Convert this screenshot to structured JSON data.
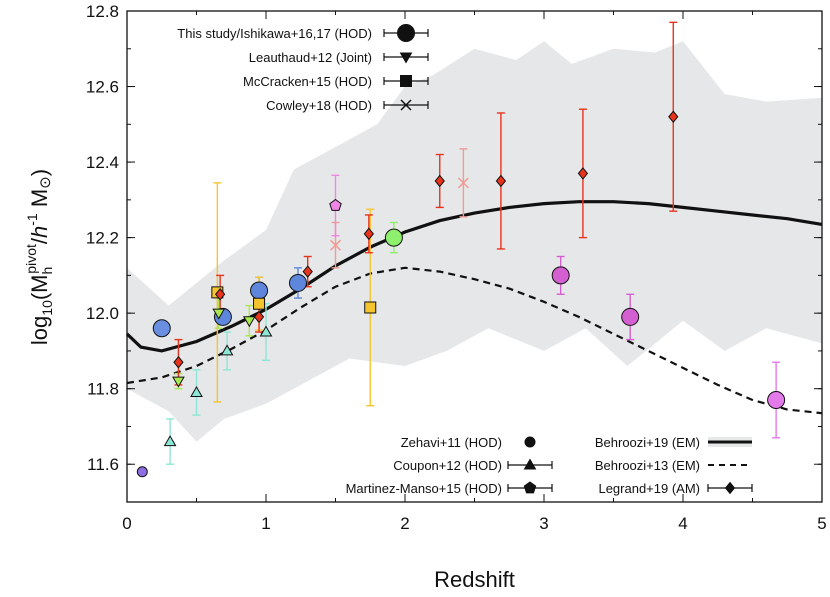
{
  "chart_data": {
    "type": "scatter",
    "xlabel": "Redshift",
    "ylabel": {
      "main": "log",
      "sub10": "10",
      "paren_open": "(M",
      "sub_h": "h",
      "sup_pivot": "pivot",
      "slash": "/",
      "h": "h",
      "sup_minus1": "-1",
      "msun": " M",
      "sun_symbol": "⊙",
      "paren_close": ")"
    },
    "xlim": [
      0,
      5
    ],
    "ylim": [
      11.5,
      12.8
    ],
    "xticks": [
      "0",
      "1",
      "2",
      "3",
      "4",
      "5"
    ],
    "yticks": [
      "11.6",
      "11.8",
      "12.0",
      "12.2",
      "12.4",
      "12.6",
      "12.8"
    ],
    "band": {
      "name": "Behroozi+19 (EM) scatter",
      "color": "#e6e7e8",
      "upper": [
        [
          0,
          12.12
        ],
        [
          0.3,
          12.02
        ],
        [
          0.5,
          12.08
        ],
        [
          0.7,
          12.14
        ],
        [
          1.0,
          12.22
        ],
        [
          1.2,
          12.38
        ],
        [
          1.5,
          12.44
        ],
        [
          1.8,
          12.5
        ],
        [
          2.0,
          12.6
        ],
        [
          2.2,
          12.63
        ],
        [
          2.5,
          12.7
        ],
        [
          2.8,
          12.67
        ],
        [
          3.0,
          12.72
        ],
        [
          3.2,
          12.66
        ],
        [
          3.5,
          12.7
        ],
        [
          3.8,
          12.69
        ],
        [
          4.0,
          12.72
        ],
        [
          4.3,
          12.58
        ],
        [
          4.6,
          12.56
        ],
        [
          5.0,
          12.57
        ]
      ],
      "lower": [
        [
          0,
          11.8
        ],
        [
          0.3,
          11.74
        ],
        [
          0.5,
          11.66
        ],
        [
          0.7,
          11.72
        ],
        [
          1.0,
          11.76
        ],
        [
          1.3,
          11.82
        ],
        [
          1.6,
          11.88
        ],
        [
          2.0,
          11.86
        ],
        [
          2.3,
          11.9
        ],
        [
          2.6,
          11.96
        ],
        [
          3.0,
          11.9
        ],
        [
          3.3,
          11.96
        ],
        [
          3.6,
          11.86
        ],
        [
          4.0,
          11.98
        ],
        [
          4.3,
          11.9
        ],
        [
          4.6,
          11.96
        ],
        [
          5.0,
          11.92
        ]
      ]
    },
    "lines": [
      {
        "name": "Behroozi+19 (EM)",
        "style": "solid",
        "color": "#111111",
        "points": [
          [
            0,
            11.945
          ],
          [
            0.1,
            11.91
          ],
          [
            0.25,
            11.9
          ],
          [
            0.5,
            11.925
          ],
          [
            0.75,
            11.965
          ],
          [
            1.0,
            12.01
          ],
          [
            1.25,
            12.065
          ],
          [
            1.5,
            12.125
          ],
          [
            1.75,
            12.175
          ],
          [
            2.0,
            12.215
          ],
          [
            2.25,
            12.245
          ],
          [
            2.5,
            12.265
          ],
          [
            2.75,
            12.28
          ],
          [
            3.0,
            12.29
          ],
          [
            3.25,
            12.295
          ],
          [
            3.5,
            12.295
          ],
          [
            3.75,
            12.29
          ],
          [
            4.0,
            12.28
          ],
          [
            4.25,
            12.27
          ],
          [
            4.5,
            12.26
          ],
          [
            4.75,
            12.25
          ],
          [
            5.0,
            12.235
          ]
        ]
      },
      {
        "name": "Behroozi+13 (EM)",
        "style": "dashed",
        "color": "#111111",
        "points": [
          [
            0,
            11.815
          ],
          [
            0.25,
            11.83
          ],
          [
            0.5,
            11.86
          ],
          [
            0.75,
            11.905
          ],
          [
            1.0,
            11.955
          ],
          [
            1.25,
            12.015
          ],
          [
            1.5,
            12.07
          ],
          [
            1.75,
            12.105
          ],
          [
            2.0,
            12.12
          ],
          [
            2.25,
            12.11
          ],
          [
            2.5,
            12.09
          ],
          [
            2.75,
            12.065
          ],
          [
            3.0,
            12.03
          ],
          [
            3.25,
            11.99
          ],
          [
            3.5,
            11.945
          ],
          [
            3.75,
            11.9
          ],
          [
            4.0,
            11.855
          ],
          [
            4.25,
            11.81
          ],
          [
            4.5,
            11.77
          ],
          [
            4.75,
            11.745
          ],
          [
            5.0,
            11.735
          ]
        ]
      }
    ],
    "series": [
      {
        "name": "This study/Ishikawa+16,17 (HOD)",
        "marker": "circle",
        "points": [
          {
            "x": 0.25,
            "y": 11.96,
            "err": [
              0,
              0
            ],
            "color": "#6a8fe0"
          },
          {
            "x": 0.69,
            "y": 11.99,
            "err": [
              0,
              0
            ],
            "color": "#5f86dd"
          },
          {
            "x": 0.95,
            "y": 12.06,
            "err": [
              0.035,
              0.035
            ],
            "color": "#5f86dd"
          },
          {
            "x": 1.23,
            "y": 12.08,
            "err": [
              0.04,
              0.04
            ],
            "color": "#5f86dd"
          },
          {
            "x": 1.92,
            "y": 12.2,
            "err": [
              0.04,
              0.04
            ],
            "color": "#8ef06c"
          },
          {
            "x": 3.12,
            "y": 12.1,
            "err": [
              0.05,
              0.05
            ],
            "color": "#d45fd0"
          },
          {
            "x": 3.62,
            "y": 11.99,
            "err": [
              0.06,
              0.06
            ],
            "color": "#d45fd0"
          },
          {
            "x": 4.67,
            "y": 11.77,
            "err": [
              0.1,
              0.1
            ],
            "color": "#e27ae9"
          },
          {
            "x": 0.11,
            "y": 11.58,
            "err": [
              0,
              0
            ],
            "color": "#8d6ee0",
            "small": true
          }
        ]
      },
      {
        "name": "Leauthaud+12 (Joint)",
        "marker": "triangle-down",
        "points": [
          {
            "x": 0.37,
            "y": 11.82,
            "err": [
              0.02,
              0.02
            ],
            "color": "#a8e850"
          },
          {
            "x": 0.66,
            "y": 12.0,
            "err": [
              0.04,
              0.04
            ],
            "color": "#a8e850"
          },
          {
            "x": 0.88,
            "y": 11.98,
            "err": [
              0.04,
              0.04
            ],
            "color": "#a8e850"
          }
        ]
      },
      {
        "name": "McCracken+15 (HOD)",
        "marker": "square",
        "points": [
          {
            "x": 0.65,
            "y": 12.055,
            "err": [
              0.29,
              0.29
            ],
            "color": "#f5c530"
          },
          {
            "x": 0.95,
            "y": 12.025,
            "err": [
              0.07,
              0.07
            ],
            "color": "#f5c530"
          },
          {
            "x": 1.75,
            "y": 12.015,
            "err": [
              0.26,
              0.26
            ],
            "color": "#f5c530"
          }
        ]
      },
      {
        "name": "Cowley+18 (HOD)",
        "marker": "cross",
        "points": [
          {
            "x": 1.5,
            "y": 12.18,
            "err": [
              0.06,
              0.06
            ],
            "color": "#f29a95"
          },
          {
            "x": 2.42,
            "y": 12.345,
            "err": [
              0.09,
              0.09
            ],
            "color": "#f29a95"
          }
        ]
      },
      {
        "name": "Zehavi+11 (HOD)",
        "marker": "circle-small",
        "points": []
      },
      {
        "name": "Coupon+12 (HOD)",
        "marker": "triangle-up",
        "points": [
          {
            "x": 0.31,
            "y": 11.66,
            "err": [
              0.06,
              0.06
            ],
            "color": "#8ee6d6"
          },
          {
            "x": 0.5,
            "y": 11.79,
            "err": [
              0.06,
              0.06
            ],
            "color": "#8ee6d6"
          },
          {
            "x": 0.72,
            "y": 11.9,
            "err": [
              0.05,
              0.05
            ],
            "color": "#8ee6d6"
          },
          {
            "x": 1.0,
            "y": 11.95,
            "err": [
              0.075,
              0.075
            ],
            "color": "#8ee6d6"
          }
        ]
      },
      {
        "name": "Martinez-Manso+15 (HOD)",
        "marker": "pentagon",
        "points": [
          {
            "x": 1.5,
            "y": 12.285,
            "err": [
              0.08,
              0.08
            ],
            "color": "#ef86e6"
          }
        ]
      },
      {
        "name": "Legrand+19 (AM)",
        "marker": "diamond",
        "points": [
          {
            "x": 0.37,
            "y": 11.87,
            "err": [
              0.06,
              0.06
            ],
            "color": "#e8341d"
          },
          {
            "x": 0.67,
            "y": 12.05,
            "err": [
              0.05,
              0.05
            ],
            "color": "#e8341d"
          },
          {
            "x": 0.95,
            "y": 11.99,
            "err": [
              0.04,
              0.04
            ],
            "color": "#e8341d"
          },
          {
            "x": 1.3,
            "y": 12.11,
            "err": [
              0.04,
              0.04
            ],
            "color": "#e8341d"
          },
          {
            "x": 1.74,
            "y": 12.21,
            "err": [
              0.05,
              0.05
            ],
            "color": "#e8341d"
          },
          {
            "x": 2.25,
            "y": 12.35,
            "err": [
              0.07,
              0.07
            ],
            "color": "#e8341d"
          },
          {
            "x": 2.69,
            "y": 12.35,
            "err": [
              0.18,
              0.18
            ],
            "color": "#e8341d"
          },
          {
            "x": 3.28,
            "y": 12.37,
            "err": [
              0.17,
              0.17
            ],
            "color": "#e8341d"
          },
          {
            "x": 3.93,
            "y": 12.52,
            "err": [
              0.25,
              0.25
            ],
            "color": "#e8341d"
          }
        ]
      }
    ],
    "legend": {
      "top": [
        {
          "label": "This study/Ishikawa+16,17 (HOD)",
          "marker": "circle"
        },
        {
          "label": "Leauthaud+12 (Joint)",
          "marker": "triangle-down"
        },
        {
          "label": "McCracken+15 (HOD)",
          "marker": "square"
        },
        {
          "label": "Cowley+18 (HOD)",
          "marker": "cross"
        }
      ],
      "bottom_left": [
        {
          "label": "Zehavi+11 (HOD)",
          "marker": "circle-small"
        },
        {
          "label": "Coupon+12 (HOD)",
          "marker": "triangle-up"
        },
        {
          "label": "Martinez-Manso+15 (HOD)",
          "marker": "pentagon"
        }
      ],
      "bottom_right": [
        {
          "label": "Behroozi+19 (EM)",
          "marker": "band-line"
        },
        {
          "label": "Behroozi+13 (EM)",
          "marker": "dashed-line"
        },
        {
          "label": "Legrand+19 (AM)",
          "marker": "diamond"
        }
      ]
    }
  }
}
